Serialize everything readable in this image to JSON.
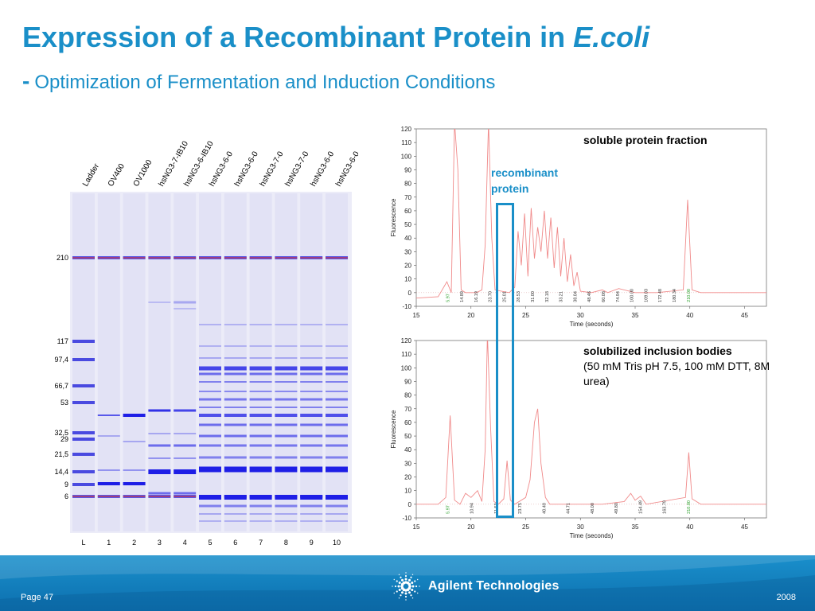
{
  "slide": {
    "title_main": "Expression of a Recombinant Protein in ",
    "title_italic": "E.coli",
    "subtitle_dash": "-",
    "subtitle": "Optimization of Fermentation and Induction Conditions"
  },
  "gel": {
    "lane_headers": [
      "Ladder",
      "OV400",
      "OV1000",
      "hsNG3-7-IB10",
      "hsNG3-6-IB10",
      "hsNG3-6-0",
      "hsNG3-6-0",
      "hsNG3-7-0",
      "hsNG3-7-0",
      "hsNG3-6-0",
      "hsNG3-6-0"
    ],
    "lane_numbers": [
      "L",
      "1",
      "2",
      "3",
      "4",
      "5",
      "6",
      "7",
      "8",
      "9",
      "10"
    ],
    "markers": [
      {
        "label": "210",
        "kda": 210
      },
      {
        "label": "117",
        "kda": 117
      },
      {
        "label": "97,4",
        "kda": 97.4
      },
      {
        "label": "66,7",
        "kda": 66.7
      },
      {
        "label": "53",
        "kda": 53
      },
      {
        "label": "32,5",
        "kda": 32.5
      },
      {
        "label": "29",
        "kda": 29
      },
      {
        "label": "21,5",
        "kda": 21.5
      },
      {
        "label": "14,4",
        "kda": 14.4
      },
      {
        "label": "9",
        "kda": 9
      },
      {
        "label": "6",
        "kda": 6
      }
    ]
  },
  "annotations": {
    "soluble": "soluble protein fraction",
    "inclusion_title": "solubilized inclusion bodies",
    "inclusion_detail": "(50 mM Tris pH 7.5, 100 mM DTT, 8M urea)",
    "recombinant": "recombinant protein"
  },
  "chart_data": [
    {
      "type": "line",
      "title": "soluble protein fraction",
      "xlabel": "Time (seconds)",
      "ylabel": "Fluorescence",
      "xlim": [
        15,
        47
      ],
      "ylim": [
        -10,
        120
      ],
      "x_ticks": [
        "15",
        "20",
        "25",
        "30",
        "35",
        "40",
        "45"
      ],
      "y_ticks": [
        "-10",
        "0",
        "10",
        "20",
        "30",
        "40",
        "50",
        "60",
        "70",
        "80",
        "90",
        "100",
        "110",
        "120"
      ],
      "grid": false,
      "series": [
        {
          "color": "#f08a8a",
          "points": [
            [
              15,
              -4
            ],
            [
              17,
              -3
            ],
            [
              17.8,
              8
            ],
            [
              18.2,
              0
            ],
            [
              18.5,
              125
            ],
            [
              18.8,
              90
            ],
            [
              19.1,
              2
            ],
            [
              19.5,
              0
            ],
            [
              20.5,
              0
            ],
            [
              21,
              2
            ],
            [
              21.3,
              35
            ],
            [
              21.6,
              125
            ],
            [
              21.9,
              40
            ],
            [
              22.2,
              2
            ],
            [
              22.8,
              1
            ],
            [
              23.5,
              0
            ],
            [
              24,
              4
            ],
            [
              24.3,
              45
            ],
            [
              24.6,
              20
            ],
            [
              24.9,
              58
            ],
            [
              25.2,
              12
            ],
            [
              25.5,
              62
            ],
            [
              25.8,
              25
            ],
            [
              26.1,
              48
            ],
            [
              26.4,
              30
            ],
            [
              26.7,
              60
            ],
            [
              27,
              25
            ],
            [
              27.3,
              55
            ],
            [
              27.6,
              18
            ],
            [
              27.9,
              48
            ],
            [
              28.2,
              12
            ],
            [
              28.5,
              40
            ],
            [
              28.8,
              8
            ],
            [
              29.1,
              28
            ],
            [
              29.4,
              5
            ],
            [
              29.7,
              15
            ],
            [
              30,
              1
            ],
            [
              31,
              0
            ],
            [
              32,
              2
            ],
            [
              32.5,
              0
            ],
            [
              33.5,
              3
            ],
            [
              35,
              0
            ],
            [
              37,
              0
            ],
            [
              39.4,
              2
            ],
            [
              39.8,
              68
            ],
            [
              40.2,
              2
            ],
            [
              41,
              0
            ],
            [
              47,
              0
            ]
          ]
        }
      ],
      "peak_labels": [
        "5.97",
        "14.89",
        "16.19",
        "23.70",
        "25.01",
        "28.53",
        "31.00",
        "32.18",
        "33.21",
        "38.04",
        "48.46",
        "60.08",
        "74.94",
        "100.00",
        "109.03",
        "172.48",
        "180.34",
        "210.00"
      ]
    },
    {
      "type": "line",
      "title": "solubilized inclusion bodies",
      "xlabel": "Time (seconds)",
      "ylabel": "Fluorescence",
      "xlim": [
        15,
        47
      ],
      "ylim": [
        -10,
        120
      ],
      "x_ticks": [
        "15",
        "20",
        "25",
        "30",
        "35",
        "40",
        "45"
      ],
      "y_ticks": [
        "-10",
        "0",
        "10",
        "20",
        "30",
        "40",
        "50",
        "60",
        "70",
        "80",
        "90",
        "100",
        "110",
        "120"
      ],
      "grid": false,
      "series": [
        {
          "color": "#f08a8a",
          "points": [
            [
              15,
              0
            ],
            [
              17,
              0
            ],
            [
              17.7,
              5
            ],
            [
              18.1,
              65
            ],
            [
              18.5,
              3
            ],
            [
              19,
              0
            ],
            [
              19.5,
              8
            ],
            [
              20,
              5
            ],
            [
              20.6,
              10
            ],
            [
              21,
              2
            ],
            [
              21.3,
              40
            ],
            [
              21.5,
              125
            ],
            [
              21.8,
              55
            ],
            [
              22.1,
              2
            ],
            [
              22.5,
              0
            ],
            [
              23,
              4
            ],
            [
              23.3,
              32
            ],
            [
              23.6,
              3
            ],
            [
              24,
              0
            ],
            [
              25,
              5
            ],
            [
              25.4,
              18
            ],
            [
              25.8,
              60
            ],
            [
              26.1,
              70
            ],
            [
              26.4,
              30
            ],
            [
              26.8,
              5
            ],
            [
              27.2,
              0
            ],
            [
              30,
              0
            ],
            [
              32,
              0
            ],
            [
              34,
              2
            ],
            [
              34.6,
              8
            ],
            [
              35,
              3
            ],
            [
              35.5,
              6
            ],
            [
              36,
              0
            ],
            [
              39.6,
              5
            ],
            [
              39.9,
              38
            ],
            [
              40.2,
              4
            ],
            [
              41,
              0
            ],
            [
              47,
              0
            ]
          ]
        }
      ],
      "peak_labels": [
        "5.97",
        "10.94",
        "11.53",
        "23.75",
        "40.40",
        "44.71",
        "48.00",
        "49.80",
        "154.49",
        "163.79",
        "210.00"
      ]
    }
  ],
  "footer": {
    "page": "Page 47",
    "brand": "Agilent Technologies",
    "year": "2008"
  }
}
